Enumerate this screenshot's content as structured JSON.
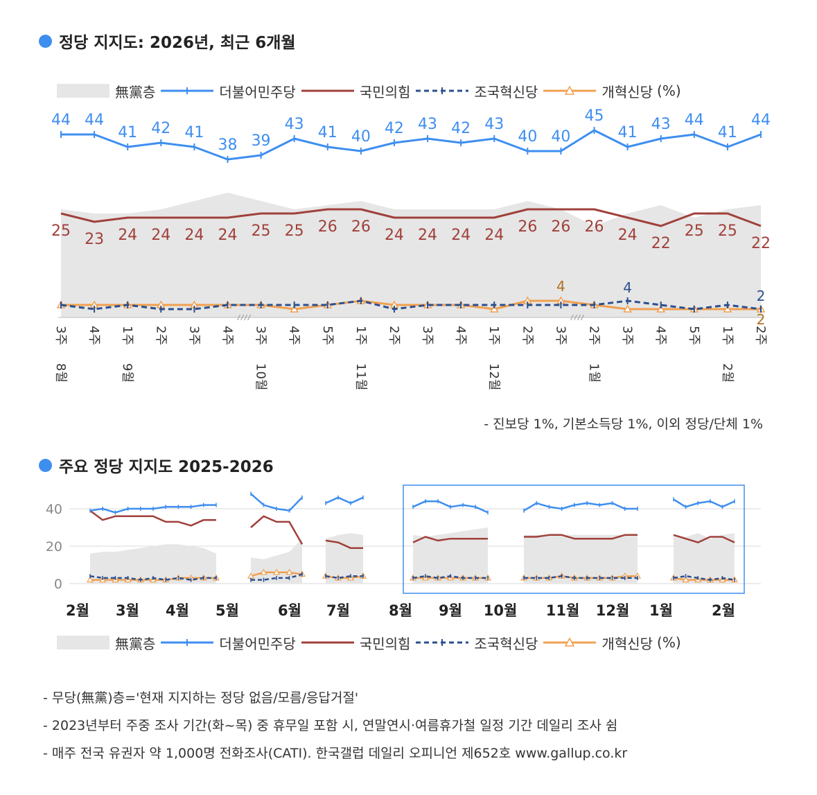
{
  "chart1": {
    "title": "정당 지지도: 2026년, 최근 6개월",
    "legend": {
      "noparty": "無黨층",
      "dem": "더불어민주당",
      "ppp": "국민의힘",
      "rebuild": "조국혁신당",
      "reform": "개혁신당",
      "unit": "(%)"
    },
    "note": "- 진보당 1%, 기본소득당 1%, 이외 정당/단체 1%"
  },
  "chart2": {
    "title": "주요 정당 지지도 2025-2026",
    "legend": {
      "noparty": "無黨층",
      "dem": "더불어민주당",
      "ppp": "국민의힘",
      "rebuild": "조국혁신당",
      "reform": "개혁신당",
      "unit": "(%)"
    }
  },
  "footnotes": [
    "- 무당(無黨)층='현재 지지하는 정당 없음/모름/응답거절'",
    "- 2023년부터 주중 조사 기간(화~목) 중 휴무일 포함 시, 연말연시·여름휴가철 일정 기간 데일리 조사 쉼",
    "- 매주 전국 유권자 약 1,000명 전화조사(CATI). 한국갤럽 데일리 오피니언 제652호 www.gallup.co.kr"
  ],
  "colors": {
    "dem": "#3e8ef0",
    "ppp": "#a0403a",
    "rebuild": "#2a4f8f",
    "reform": "#f0a050",
    "noparty": "#e6e6e6",
    "highlight": "#3e8ef0"
  },
  "chart_data": [
    {
      "type": "line",
      "title": "정당 지지도: 2026년, 최근 6개월",
      "categories": [
        "3주",
        "4주",
        "1주",
        "2주",
        "3주",
        "4주",
        "3주",
        "4주",
        "5주",
        "1주",
        "2주",
        "3주",
        "4주",
        "1주",
        "2주",
        "3주",
        "2주",
        "3주",
        "4주",
        "5주",
        "1주",
        "2주"
      ],
      "month_labels": [
        {
          "index": 0,
          "label": "8월"
        },
        {
          "index": 2,
          "label": "9월"
        },
        {
          "index": 6,
          "label": "10월"
        },
        {
          "index": 9,
          "label": "11월"
        },
        {
          "index": 13,
          "label": "12월"
        },
        {
          "index": 16,
          "label": "1월"
        },
        {
          "index": 20,
          "label": "2월"
        }
      ],
      "axis_breaks_after_index": [
        5,
        15
      ],
      "ylim": [
        0,
        55
      ],
      "series": [
        {
          "name": "더불어민주당",
          "key": "dem",
          "values": [
            44,
            44,
            41,
            42,
            41,
            38,
            39,
            43,
            41,
            40,
            42,
            43,
            42,
            43,
            40,
            40,
            45,
            41,
            43,
            44,
            41,
            44
          ]
        },
        {
          "name": "국민의힘",
          "key": "ppp",
          "values": [
            25,
            23,
            24,
            24,
            24,
            24,
            25,
            25,
            26,
            26,
            24,
            24,
            24,
            24,
            26,
            26,
            26,
            24,
            22,
            25,
            25,
            22
          ]
        },
        {
          "name": "조국혁신당",
          "key": "rebuild",
          "values": [
            3,
            2,
            3,
            2,
            2,
            3,
            3,
            3,
            3,
            4,
            2,
            3,
            3,
            3,
            3,
            3,
            3,
            4,
            3,
            2,
            3,
            2
          ]
        },
        {
          "name": "개혁신당",
          "key": "reform",
          "values": [
            3,
            3,
            3,
            3,
            3,
            3,
            3,
            2,
            3,
            4,
            3,
            3,
            3,
            2,
            4,
            4,
            3,
            2,
            2,
            2,
            2,
            2
          ]
        },
        {
          "name": "無黨층",
          "key": "noparty",
          "values": [
            26,
            25,
            25,
            26,
            28,
            30,
            28,
            26,
            27,
            28,
            26,
            26,
            26,
            26,
            28,
            26,
            22,
            25,
            27,
            24,
            26,
            27
          ]
        }
      ],
      "labeled_values": {
        "dem": [
          44,
          44,
          41,
          42,
          41,
          38,
          39,
          43,
          41,
          40,
          42,
          43,
          42,
          43,
          40,
          40,
          45,
          41,
          43,
          44,
          41,
          44
        ],
        "ppp": [
          25,
          23,
          24,
          24,
          24,
          24,
          25,
          25,
          26,
          26,
          24,
          24,
          24,
          24,
          26,
          26,
          26,
          24,
          22,
          25,
          25,
          22
        ],
        "rebuild": [
          {
            "index": 17,
            "value": 4
          },
          {
            "index": 21,
            "value": 2
          }
        ],
        "reform": [
          {
            "index": 15,
            "value": 4
          },
          {
            "index": 21,
            "value": 2
          }
        ]
      }
    },
    {
      "type": "line",
      "title": "주요 정당 지지도 2025-2026",
      "ylim": [
        0,
        50
      ],
      "yticks": [
        0,
        20,
        40
      ],
      "x_months": [
        "2월",
        "3월",
        "4월",
        "5월",
        "6월",
        "7월",
        "8월",
        "9월",
        "10월",
        "11월",
        "12월",
        "1월",
        "2월"
      ],
      "segments": [
        {
          "dem": [
            39,
            40,
            38,
            40,
            40,
            40,
            41,
            41,
            41,
            42,
            42
          ],
          "ppp": [
            39,
            34,
            36,
            36,
            36,
            36,
            33,
            33,
            31,
            34,
            34
          ],
          "rebuild": [
            4,
            3,
            3,
            3,
            2,
            3,
            2,
            3,
            2,
            3,
            3
          ],
          "reform": [
            2,
            2,
            2,
            2,
            2,
            2,
            2,
            3,
            3,
            3,
            3
          ],
          "noparty": [
            16,
            17,
            17,
            18,
            19,
            20,
            21,
            21,
            20,
            19,
            16
          ]
        },
        {
          "dem": [
            48,
            42,
            40,
            39,
            46
          ],
          "ppp": [
            30,
            36,
            33,
            33,
            21
          ],
          "rebuild": [
            2,
            2,
            3,
            3,
            5
          ],
          "reform": [
            4,
            6,
            6,
            6,
            5
          ],
          "noparty": [
            14,
            13,
            15,
            17,
            24
          ]
        },
        {
          "dem": [
            43,
            46,
            43,
            46
          ],
          "ppp": [
            23,
            22,
            19,
            19
          ],
          "rebuild": [
            4,
            3,
            4,
            4
          ],
          "reform": [
            4,
            3,
            3,
            4
          ],
          "noparty": [
            24,
            26,
            27,
            26
          ]
        },
        {
          "dem": [
            41,
            44,
            44,
            41,
            42,
            41,
            38
          ],
          "ppp": [
            22,
            25,
            23,
            24,
            24,
            24,
            24
          ],
          "rebuild": [
            3,
            4,
            3,
            4,
            3,
            3,
            3
          ],
          "reform": [
            3,
            3,
            3,
            3,
            3,
            3,
            3
          ],
          "noparty": [
            26,
            25,
            26,
            27,
            28,
            29,
            30
          ]
        },
        {
          "dem": [
            39,
            43,
            41,
            40,
            42,
            43,
            42,
            43,
            40,
            40
          ],
          "ppp": [
            25,
            25,
            26,
            26,
            24,
            24,
            24,
            24,
            26,
            26
          ],
          "rebuild": [
            3,
            3,
            3,
            4,
            3,
            3,
            3,
            3,
            3,
            3
          ],
          "reform": [
            3,
            3,
            3,
            4,
            3,
            3,
            3,
            3,
            4,
            4
          ],
          "noparty": [
            26,
            26,
            26,
            26,
            26,
            26,
            26,
            26,
            26,
            26
          ]
        },
        {
          "dem": [
            45,
            41,
            43,
            44,
            41,
            44
          ],
          "ppp": [
            26,
            24,
            22,
            25,
            25,
            22
          ],
          "rebuild": [
            3,
            4,
            3,
            2,
            3,
            2
          ],
          "reform": [
            3,
            2,
            2,
            2,
            2,
            2
          ],
          "noparty": [
            26,
            25,
            27,
            24,
            26,
            27
          ]
        }
      ],
      "highlight_range": "8월~2월"
    }
  ]
}
